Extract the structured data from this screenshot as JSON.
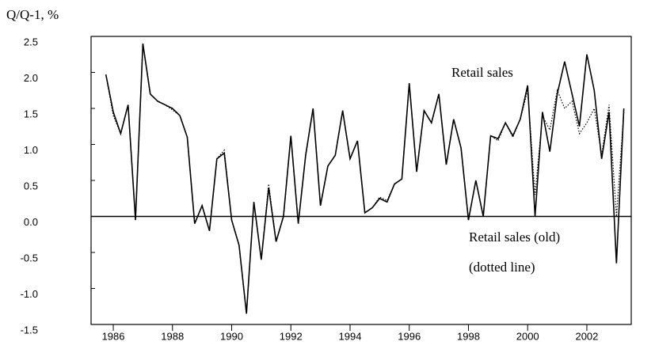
{
  "chart_data": {
    "type": "line",
    "y_axis_label": "Q/Q-1, %",
    "annotations": [
      "Retail sales",
      "Retail sales (old)",
      "(dotted line)"
    ],
    "x": [
      1985.75,
      1986,
      1986.25,
      1986.5,
      1986.75,
      1987,
      1987.25,
      1987.5,
      1987.75,
      1988,
      1988.25,
      1988.5,
      1988.75,
      1989,
      1989.25,
      1989.5,
      1989.75,
      1990,
      1990.25,
      1990.5,
      1990.75,
      1991,
      1991.25,
      1991.5,
      1991.75,
      1992,
      1992.25,
      1992.5,
      1992.75,
      1993,
      1993.25,
      1993.5,
      1993.75,
      1994,
      1994.25,
      1994.5,
      1994.75,
      1995,
      1995.25,
      1995.5,
      1995.75,
      1996,
      1996.25,
      1996.5,
      1996.75,
      1997,
      1997.25,
      1997.5,
      1997.75,
      1998,
      1998.25,
      1998.5,
      1998.75,
      1999,
      1999.25,
      1999.5,
      1999.75,
      2000,
      2000.25,
      2000.5,
      2000.75,
      2001,
      2001.25,
      2001.5,
      2001.75,
      2002,
      2002.25,
      2002.5,
      2002.75,
      2003,
      2003.25
    ],
    "series": [
      {
        "name": "Retail sales",
        "color": "#000000",
        "dash": false,
        "values": [
          1.97,
          1.45,
          1.15,
          1.55,
          -0.05,
          2.4,
          1.7,
          1.6,
          1.55,
          1.5,
          1.4,
          1.1,
          -0.1,
          0.15,
          -0.2,
          0.8,
          0.88,
          -0.05,
          -0.4,
          -1.35,
          0.2,
          -0.6,
          0.4,
          -0.35,
          0.0,
          1.12,
          -0.1,
          0.85,
          1.5,
          0.15,
          0.7,
          0.85,
          1.47,
          0.8,
          1.05,
          0.05,
          0.12,
          0.25,
          0.2,
          0.45,
          0.52,
          1.85,
          0.62,
          1.47,
          1.3,
          1.7,
          0.72,
          1.35,
          0.95,
          -0.05,
          0.5,
          0.0,
          1.12,
          1.08,
          1.3,
          1.12,
          1.35,
          1.82,
          0.0,
          1.45,
          0.9,
          1.7,
          2.15,
          1.7,
          1.25,
          2.25,
          1.75,
          0.8,
          1.45,
          -0.65,
          1.5
        ]
      },
      {
        "name": "Retail sales (old)",
        "color": "#000000",
        "dash": true,
        "values": [
          1.97,
          1.4,
          1.15,
          1.55,
          -0.05,
          2.4,
          1.7,
          1.6,
          1.55,
          1.48,
          1.4,
          1.1,
          -0.1,
          0.15,
          -0.2,
          0.8,
          0.92,
          -0.05,
          -0.4,
          -1.35,
          0.2,
          -0.6,
          0.45,
          -0.35,
          0.0,
          1.12,
          -0.1,
          0.85,
          1.5,
          0.15,
          0.7,
          0.85,
          1.47,
          0.8,
          1.05,
          0.05,
          0.12,
          0.27,
          0.22,
          0.45,
          0.52,
          1.85,
          0.62,
          1.47,
          1.3,
          1.7,
          0.72,
          1.35,
          0.95,
          -0.05,
          0.5,
          0.0,
          1.12,
          1.05,
          1.3,
          1.1,
          1.35,
          1.75,
          0.3,
          1.4,
          1.2,
          1.75,
          1.5,
          1.6,
          1.15,
          1.3,
          1.5,
          0.85,
          1.55,
          0.0,
          1.45
        ]
      }
    ],
    "xlim": [
      1985.25,
      2003.5
    ],
    "xticks": [
      1986,
      1988,
      1990,
      1992,
      1994,
      1996,
      1998,
      2000,
      2002
    ],
    "ylim": [
      -1.5,
      2.5
    ],
    "yticks": [
      2.5,
      {
        "value": 2,
        "label": "2.0"
      },
      1.5,
      {
        "value": 1,
        "label": "1.0"
      },
      0.5,
      {
        "value": 0,
        "label": "0.0"
      },
      -0.5,
      {
        "value": -1,
        "label": "-1.0"
      },
      -1.5
    ],
    "zero_line": true
  }
}
